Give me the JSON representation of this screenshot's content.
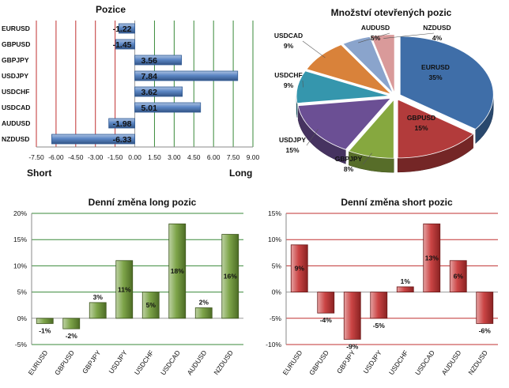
{
  "colors": {
    "pos_bar": "#4a7abf",
    "pie": [
      "#3f6ea8",
      "#b23b3b",
      "#86a83f",
      "#6b4f94",
      "#3596ad",
      "#d9823a",
      "#8aa4cc",
      "#d99a9a"
    ],
    "long_bar": "#6e9a35",
    "short_bar": "#c53030",
    "grid_green": "#3a8a3a",
    "grid_red": "#c03030"
  },
  "chart_data": [
    {
      "type": "bar",
      "orientation": "horizontal",
      "title": "Pozice",
      "categories": [
        "EURUSD",
        "GBPUSD",
        "GBPJPY",
        "USDJPY",
        "USDCHF",
        "USDCAD",
        "AUDUSD",
        "NZDUSD"
      ],
      "values": [
        -1.22,
        -1.45,
        3.56,
        7.84,
        3.62,
        5.01,
        -1.98,
        -6.33
      ],
      "value_labels": [
        "-1.22",
        "-1.45",
        "3.56",
        "7.84",
        "3.62",
        "5.01",
        "-1.98",
        "-6.33"
      ],
      "xlim": [
        -7.5,
        9.0
      ],
      "xticks": [
        "-7.50",
        "-6.00",
        "-4.50",
        "-3.00",
        "-1.50",
        "0.00",
        "1.50",
        "3.00",
        "4.50",
        "6.00",
        "7.50",
        "9.00"
      ],
      "left_label": "Short",
      "right_label": "Long"
    },
    {
      "type": "pie",
      "title": "Množství otevřených pozic",
      "slices": [
        {
          "label": "EURUSD",
          "pct": 35,
          "text": "35%"
        },
        {
          "label": "GBPUSD",
          "pct": 15,
          "text": "15%"
        },
        {
          "label": "GBPJPY",
          "pct": 8,
          "text": "8%"
        },
        {
          "label": "USDJPY",
          "pct": 15,
          "text": "15%"
        },
        {
          "label": "USDCHF",
          "pct": 9,
          "text": "9%"
        },
        {
          "label": "USDCAD",
          "pct": 9,
          "text": "9%"
        },
        {
          "label": "AUDUSD",
          "pct": 5,
          "text": "5%"
        },
        {
          "label": "NZDUSD",
          "pct": 4,
          "text": "4%"
        }
      ]
    },
    {
      "type": "bar",
      "title": "Denní změna long pozic",
      "categories": [
        "EURUSD",
        "GBPUSD",
        "GBPJPY",
        "USDJPY",
        "USDCHF",
        "USDCAD",
        "AUDUSD",
        "NZDUSD"
      ],
      "values": [
        -1,
        -2,
        3,
        11,
        5,
        18,
        2,
        16
      ],
      "value_labels": [
        "-1%",
        "-2%",
        "3%",
        "11%",
        "5%",
        "18%",
        "2%",
        "16%"
      ],
      "ylim": [
        -5,
        20
      ],
      "yticks": [
        "-5%",
        "0%",
        "5%",
        "10%",
        "15%",
        "20%"
      ]
    },
    {
      "type": "bar",
      "title": "Denní změna short pozic",
      "categories": [
        "EURUSD",
        "GBPUSD",
        "GBPJPY",
        "USDJPY",
        "USDCHF",
        "USDCAD",
        "AUDUSD",
        "NZDUSD"
      ],
      "values": [
        9,
        -4,
        -9,
        -5,
        1,
        13,
        6,
        -6
      ],
      "value_labels": [
        "9%",
        "-4%",
        "-9%",
        "-5%",
        "1%",
        "13%",
        "6%",
        "-6%"
      ],
      "ylim": [
        -10,
        15
      ],
      "yticks": [
        "-10%",
        "-5%",
        "0%",
        "5%",
        "10%",
        "15%"
      ]
    }
  ]
}
